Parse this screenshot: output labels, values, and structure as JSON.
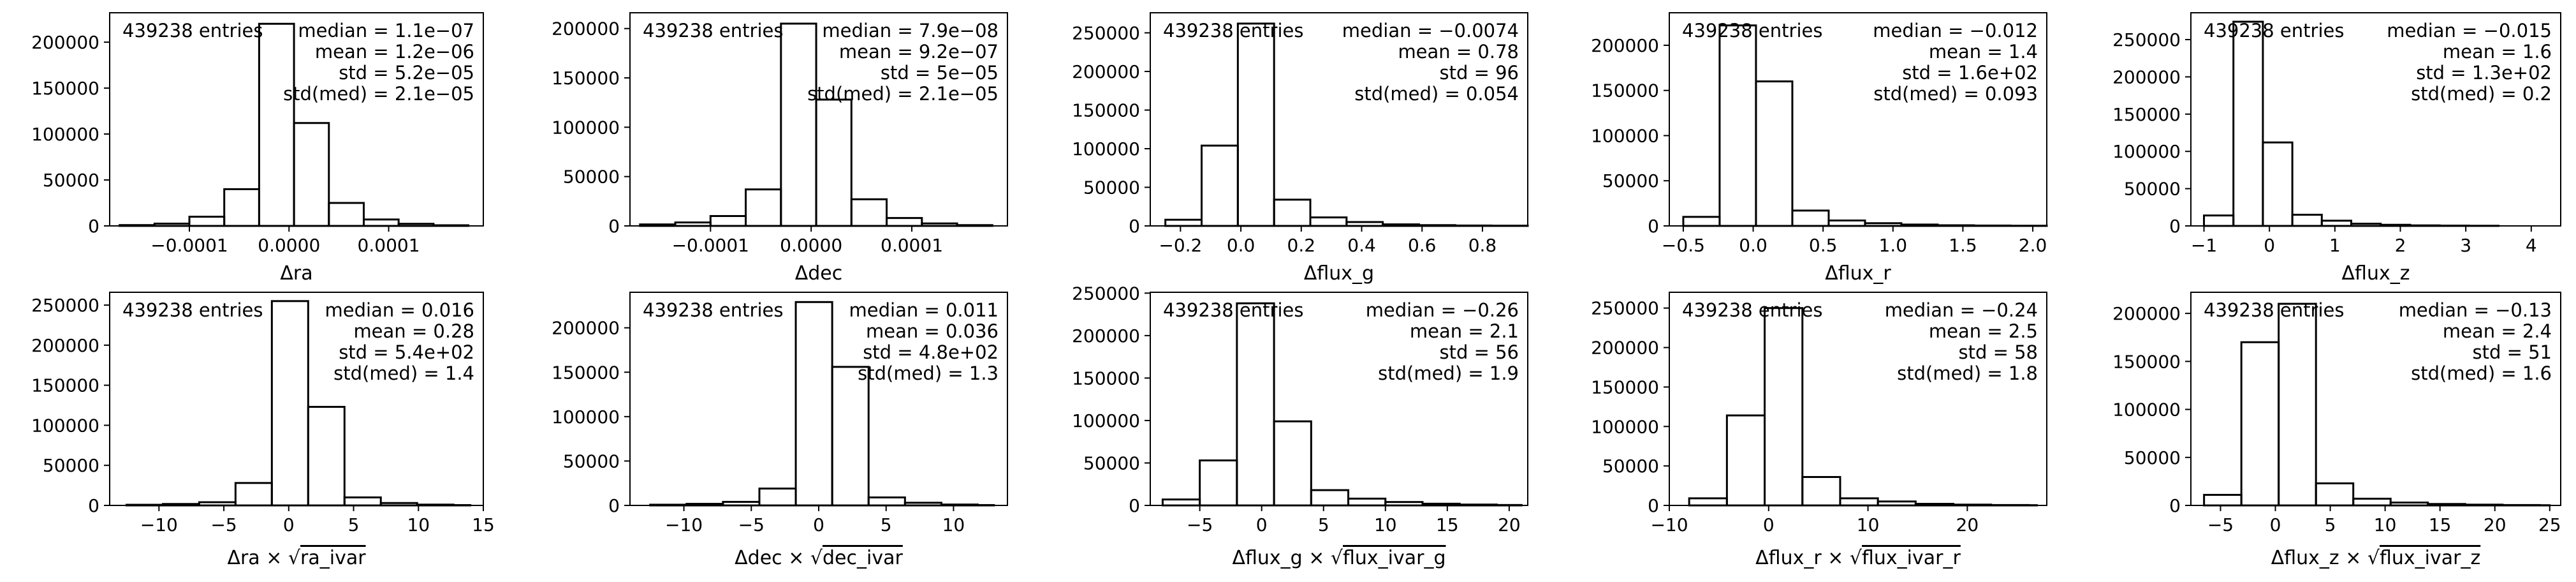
{
  "chart_data": [
    {
      "type": "bar",
      "entries_text": "439238 entries",
      "stats": [
        "median = 1.1e−07",
        "mean = 1.2e−06",
        "std = 5.2e−05",
        "std(med) = 2.1e−05"
      ],
      "xlabel": "Δra",
      "xlim": [
        -0.00018,
        0.000195
      ],
      "ylim": [
        0,
        232000
      ],
      "xticks": [
        -0.0001,
        0.0,
        0.0001
      ],
      "xtick_labels": [
        "−0.0001",
        "0.0000",
        "0.0001"
      ],
      "yticks": [
        0,
        50000,
        100000,
        150000,
        200000
      ],
      "ytick_labels": [
        "0",
        "50000",
        "100000",
        "150000",
        "200000"
      ],
      "bin_edges": [
        -0.00017,
        -0.000135,
        -0.0001,
        -6.5e-05,
        -3e-05,
        5e-06,
        4e-05,
        7.5e-05,
        0.00011,
        0.000145,
        0.00018
      ],
      "counts": [
        900,
        2500,
        10000,
        40000,
        220000,
        112000,
        25000,
        7000,
        2300,
        700
      ]
    },
    {
      "type": "bar",
      "entries_text": "439238 entries",
      "stats": [
        "median = 7.9e−08",
        "mean = 9.2e−07",
        "std = 5e−05",
        "std(med) = 2.1e−05"
      ],
      "xlabel": "Δdec",
      "xlim": [
        -0.00018,
        0.000195
      ],
      "ylim": [
        0,
        216000
      ],
      "xticks": [
        -0.0001,
        0.0,
        0.0001
      ],
      "xtick_labels": [
        "−0.0001",
        "0.0000",
        "0.0001"
      ],
      "yticks": [
        0,
        50000,
        100000,
        150000,
        200000
      ],
      "ytick_labels": [
        "0",
        "50000",
        "100000",
        "150000",
        "200000"
      ],
      "bin_edges": [
        -0.00017,
        -0.000135,
        -0.0001,
        -6.5e-05,
        -3e-05,
        5e-06,
        4e-05,
        7.5e-05,
        0.00011,
        0.000145,
        0.00018
      ],
      "counts": [
        1500,
        3500,
        10000,
        37000,
        205000,
        128000,
        27000,
        8000,
        2500,
        800
      ]
    },
    {
      "type": "bar",
      "entries_text": "439238 entries",
      "stats": [
        "median = −0.0074",
        "mean = 0.78",
        "std = 96",
        "std(med) = 0.054"
      ],
      "xlabel": "Δflux_g",
      "xlim": [
        -0.3,
        0.95
      ],
      "ylim": [
        0,
        276000
      ],
      "xticks": [
        -0.2,
        0.0,
        0.2,
        0.4,
        0.6,
        0.8
      ],
      "xtick_labels": [
        "−0.2",
        "0.0",
        "0.2",
        "0.4",
        "0.6",
        "0.8"
      ],
      "yticks": [
        0,
        50000,
        100000,
        150000,
        200000,
        250000
      ],
      "ytick_labels": [
        "0",
        "50000",
        "100000",
        "150000",
        "200000",
        "250000"
      ],
      "bin_edges": [
        -0.25,
        -0.13,
        -0.01,
        0.11,
        0.23,
        0.35,
        0.47,
        0.59,
        0.71,
        0.83,
        0.95
      ],
      "counts": [
        8000,
        104000,
        262000,
        34000,
        11000,
        5000,
        2000,
        1000,
        500,
        300
      ]
    },
    {
      "type": "bar",
      "entries_text": "439238 entries",
      "stats": [
        "median = −0.012",
        "mean = 1.4",
        "std = 1.6e+02",
        "std(med) = 0.093"
      ],
      "xlabel": "Δflux_r",
      "xlim": [
        -0.6,
        2.1
      ],
      "ylim": [
        0,
        236000
      ],
      "xticks": [
        -0.5,
        0.0,
        0.5,
        1.0,
        1.5,
        2.0
      ],
      "xtick_labels": [
        "−0.5",
        "0.0",
        "0.5",
        "1.0",
        "1.5",
        "2.0"
      ],
      "yticks": [
        0,
        50000,
        100000,
        150000,
        200000
      ],
      "ytick_labels": [
        "0",
        "50000",
        "100000",
        "150000",
        "200000"
      ],
      "bin_edges": [
        -0.5,
        -0.24,
        0.02,
        0.28,
        0.54,
        0.8,
        1.06,
        1.32,
        1.58,
        1.84,
        2.1
      ],
      "counts": [
        10000,
        222000,
        160000,
        17000,
        6000,
        3000,
        1500,
        700,
        400,
        200
      ]
    },
    {
      "type": "bar",
      "entries_text": "439238 entries",
      "stats": [
        "median = −0.015",
        "mean = 1.6",
        "std = 1.3e+02",
        "std(med) = 0.2"
      ],
      "xlabel": "Δflux_z",
      "xlim": [
        -1.2,
        4.45
      ],
      "ylim": [
        0,
        286000
      ],
      "xticks": [
        -1,
        0,
        1,
        2,
        3,
        4
      ],
      "xtick_labels": [
        "−1",
        "0",
        "1",
        "2",
        "3",
        "4"
      ],
      "yticks": [
        0,
        50000,
        100000,
        150000,
        200000,
        250000
      ],
      "ytick_labels": [
        "0",
        "50000",
        "100000",
        "150000",
        "200000",
        "250000"
      ],
      "bin_edges": [
        -1.0,
        -0.55,
        -0.1,
        0.35,
        0.8,
        1.25,
        1.7,
        2.15,
        2.6,
        3.05,
        3.5
      ],
      "counts": [
        14000,
        274000,
        112000,
        15000,
        7000,
        3000,
        1500,
        700,
        400,
        200
      ]
    },
    {
      "type": "bar",
      "entries_text": "439238 entries",
      "stats": [
        "median = 0.016",
        "mean = 0.28",
        "std = 5.4e+02",
        "std(med) = 1.4"
      ],
      "xlabel": "Δra",
      "xlabel_sqrt": "ra_ivar",
      "xlim": [
        -13.8,
        15.0
      ],
      "ylim": [
        0,
        266000
      ],
      "xticks": [
        -10,
        -5,
        0,
        5,
        10,
        15
      ],
      "xtick_labels": [
        "−10",
        "−5",
        "0",
        "5",
        "10",
        "15"
      ],
      "yticks": [
        0,
        50000,
        100000,
        150000,
        200000,
        250000
      ],
      "ytick_labels": [
        "0",
        "50000",
        "100000",
        "150000",
        "200000",
        "250000"
      ],
      "bin_edges": [
        -12.5,
        -9.7,
        -6.9,
        -4.1,
        -1.3,
        1.5,
        4.3,
        7.1,
        9.9,
        12.7,
        14.0
      ],
      "counts": [
        800,
        1800,
        4000,
        28000,
        255000,
        123000,
        10000,
        3000,
        1000,
        400
      ]
    },
    {
      "type": "bar",
      "entries_text": "439238 entries",
      "stats": [
        "median = 0.011",
        "mean = 0.036",
        "std = 4.8e+02",
        "std(med) = 1.3"
      ],
      "xlabel": "Δdec",
      "xlabel_sqrt": "dec_ivar",
      "xlim": [
        -14.0,
        14.0
      ],
      "ylim": [
        0,
        240000
      ],
      "xticks": [
        -10,
        -5,
        0,
        5,
        10
      ],
      "xtick_labels": [
        "−10",
        "−5",
        "0",
        "5",
        "10"
      ],
      "yticks": [
        0,
        50000,
        100000,
        150000,
        200000
      ],
      "ytick_labels": [
        "0",
        "50000",
        "100000",
        "150000",
        "200000"
      ],
      "bin_edges": [
        -12.5,
        -9.8,
        -7.1,
        -4.4,
        -1.7,
        1.0,
        3.7,
        6.4,
        9.1,
        11.8,
        13.0
      ],
      "counts": [
        800,
        1800,
        4000,
        19000,
        229000,
        156000,
        9000,
        3000,
        1000,
        400
      ]
    },
    {
      "type": "bar",
      "entries_text": "439238 entries",
      "stats": [
        "median = −0.26",
        "mean = 2.1",
        "std = 56",
        "std(med) = 1.9"
      ],
      "xlabel": "Δflux_g",
      "xlabel_sqrt": "flux_ivar_g",
      "xlim": [
        -9.0,
        21.5
      ],
      "ylim": [
        0,
        251000
      ],
      "xticks": [
        -5,
        0,
        5,
        10,
        15,
        20
      ],
      "xtick_labels": [
        "−5",
        "0",
        "5",
        "10",
        "15",
        "20"
      ],
      "yticks": [
        0,
        50000,
        100000,
        150000,
        200000,
        250000
      ],
      "ytick_labels": [
        "0",
        "50000",
        "100000",
        "150000",
        "200000",
        "250000"
      ],
      "bin_edges": [
        -8.0,
        -5.0,
        -2.0,
        1.0,
        4.0,
        7.0,
        10.0,
        13.0,
        16.0,
        19.0,
        21.0
      ],
      "counts": [
        7000,
        53000,
        238000,
        99000,
        18000,
        8000,
        4000,
        2000,
        1000,
        500
      ]
    },
    {
      "type": "bar",
      "entries_text": "439238 entries",
      "stats": [
        "median = −0.24",
        "mean = 2.5",
        "std = 58",
        "std(med) = 1.8"
      ],
      "xlabel": "Δflux_r",
      "xlabel_sqrt": "flux_ivar_r",
      "xlim": [
        -10.0,
        28.0
      ],
      "ylim": [
        0,
        270000
      ],
      "xticks": [
        -10,
        0,
        10,
        20
      ],
      "xtick_labels": [
        "−10",
        "0",
        "10",
        "20"
      ],
      "yticks": [
        0,
        50000,
        100000,
        150000,
        200000,
        250000
      ],
      "ytick_labels": [
        "0",
        "50000",
        "100000",
        "150000",
        "200000",
        "250000"
      ],
      "bin_edges": [
        -8.0,
        -4.2,
        -0.4,
        3.4,
        7.2,
        11.0,
        14.8,
        18.6,
        22.4,
        26.2,
        27.0
      ],
      "counts": [
        9000,
        114000,
        250000,
        36000,
        9000,
        5000,
        2000,
        1000,
        500,
        300
      ]
    },
    {
      "type": "bar",
      "entries_text": "439238 entries",
      "stats": [
        "median = −0.13",
        "mean = 2.4",
        "std = 51",
        "std(med) = 1.6"
      ],
      "xlabel": "Δflux_z",
      "xlabel_sqrt": "flux_ivar_z",
      "xlim": [
        -7.7,
        26.0
      ],
      "ylim": [
        0,
        222000
      ],
      "xticks": [
        -5,
        0,
        5,
        10,
        15,
        20,
        25
      ],
      "xtick_labels": [
        "−5",
        "0",
        "5",
        "10",
        "15",
        "20",
        "25"
      ],
      "yticks": [
        0,
        50000,
        100000,
        150000,
        200000
      ],
      "ytick_labels": [
        "0",
        "50000",
        "100000",
        "150000",
        "200000"
      ],
      "bin_edges": [
        -6.5,
        -3.1,
        0.3,
        3.7,
        7.1,
        10.5,
        13.9,
        17.3,
        20.7,
        24.1,
        25.0
      ],
      "counts": [
        11000,
        170000,
        210000,
        23000,
        7000,
        3000,
        1500,
        800,
        400,
        200
      ]
    }
  ]
}
